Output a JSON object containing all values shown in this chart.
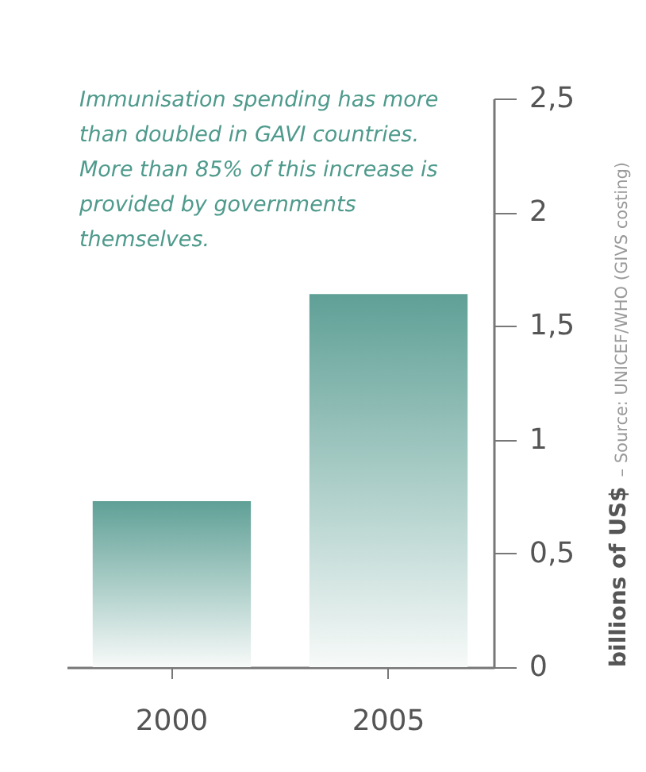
{
  "chart_data": {
    "type": "bar",
    "categories": [
      "2000",
      "2005"
    ],
    "values": [
      0.73,
      1.64
    ],
    "color": "#5fa096",
    "ylabel": "billions of US$",
    "ylim": [
      0,
      2.5
    ],
    "yticks": [
      0,
      {
        "value": 0.5,
        "label": "0,5"
      },
      1,
      {
        "value": 1.5,
        "label": "1,5"
      },
      2,
      {
        "value": 2.5,
        "label": "2,5"
      }
    ],
    "grid": false,
    "annotations": [
      "Immunisation spending has more than doubled in GAVI countries. More than 85% of this increase is provided by governments themselves.",
      "– Source: UNICEF/WHO (GIVS costing)"
    ]
  }
}
